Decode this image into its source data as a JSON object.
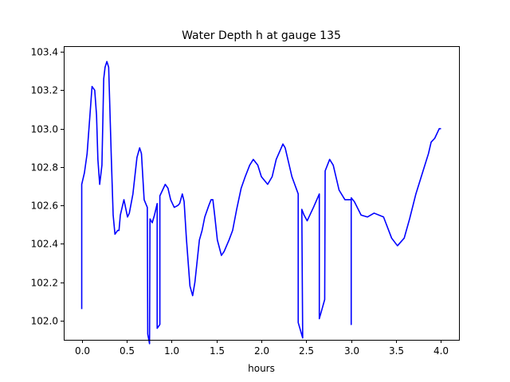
{
  "chart_data": {
    "type": "line",
    "title": "Water Depth h at gauge 135",
    "xlabel": "hours",
    "ylabel": "",
    "xlim": [
      -0.2,
      4.2
    ],
    "ylim": [
      101.9,
      103.43
    ],
    "grid": false,
    "xticks": [
      0.0,
      0.5,
      1.0,
      1.5,
      2.0,
      2.5,
      3.0,
      3.5,
      4.0
    ],
    "xtick_labels": [
      "0.0",
      "0.5",
      "1.0",
      "1.5",
      "2.0",
      "2.5",
      "3.0",
      "3.5",
      "4.0"
    ],
    "yticks": [
      102.0,
      102.2,
      102.4,
      102.6,
      102.8,
      103.0,
      103.2,
      103.4
    ],
    "ytick_labels": [
      "102.0",
      "102.2",
      "102.4",
      "102.6",
      "102.8",
      "103.0",
      "103.2",
      "103.4"
    ],
    "series": [
      {
        "name": "h",
        "color": "#0000ff",
        "points": [
          [
            0.0,
            102.06
          ],
          [
            0.0,
            102.71
          ],
          [
            0.03,
            102.77
          ],
          [
            0.06,
            102.87
          ],
          [
            0.09,
            103.06
          ],
          [
            0.115,
            103.22
          ],
          [
            0.145,
            103.2
          ],
          [
            0.165,
            103.07
          ],
          [
            0.18,
            102.84
          ],
          [
            0.2,
            102.71
          ],
          [
            0.225,
            102.81
          ],
          [
            0.245,
            103.26
          ],
          [
            0.26,
            103.32
          ],
          [
            0.28,
            103.35
          ],
          [
            0.3,
            103.32
          ],
          [
            0.33,
            102.84
          ],
          [
            0.35,
            102.55
          ],
          [
            0.37,
            102.45
          ],
          [
            0.4,
            102.47
          ],
          [
            0.415,
            102.47
          ],
          [
            0.43,
            102.55
          ],
          [
            0.47,
            102.63
          ],
          [
            0.51,
            102.54
          ],
          [
            0.53,
            102.56
          ],
          [
            0.57,
            102.66
          ],
          [
            0.615,
            102.85
          ],
          [
            0.645,
            102.9
          ],
          [
            0.665,
            102.87
          ],
          [
            0.695,
            102.63
          ],
          [
            0.73,
            102.59
          ],
          [
            0.735,
            101.93
          ],
          [
            0.755,
            101.88
          ],
          [
            0.76,
            102.53
          ],
          [
            0.785,
            102.51
          ],
          [
            0.81,
            102.55
          ],
          [
            0.84,
            102.61
          ],
          [
            0.84,
            101.96
          ],
          [
            0.87,
            101.98
          ],
          [
            0.87,
            102.65
          ],
          [
            0.93,
            102.71
          ],
          [
            0.96,
            102.69
          ],
          [
            0.99,
            102.63
          ],
          [
            1.03,
            102.59
          ],
          [
            1.07,
            102.6
          ],
          [
            1.09,
            102.61
          ],
          [
            1.12,
            102.66
          ],
          [
            1.14,
            102.62
          ],
          [
            1.165,
            102.43
          ],
          [
            1.205,
            102.18
          ],
          [
            1.235,
            102.13
          ],
          [
            1.26,
            102.2
          ],
          [
            1.31,
            102.42
          ],
          [
            1.34,
            102.47
          ],
          [
            1.37,
            102.54
          ],
          [
            1.415,
            102.6
          ],
          [
            1.44,
            102.63
          ],
          [
            1.46,
            102.63
          ],
          [
            1.48,
            102.55
          ],
          [
            1.51,
            102.42
          ],
          [
            1.555,
            102.34
          ],
          [
            1.585,
            102.36
          ],
          [
            1.64,
            102.42
          ],
          [
            1.68,
            102.47
          ],
          [
            1.725,
            102.58
          ],
          [
            1.775,
            102.69
          ],
          [
            1.82,
            102.75
          ],
          [
            1.87,
            102.81
          ],
          [
            1.91,
            102.84
          ],
          [
            1.96,
            102.81
          ],
          [
            2.0,
            102.75
          ],
          [
            2.07,
            102.71
          ],
          [
            2.12,
            102.75
          ],
          [
            2.165,
            102.84
          ],
          [
            2.24,
            102.92
          ],
          [
            2.265,
            102.9
          ],
          [
            2.34,
            102.75
          ],
          [
            2.41,
            102.66
          ],
          [
            2.41,
            101.99
          ],
          [
            2.46,
            101.91
          ],
          [
            2.45,
            102.58
          ],
          [
            2.475,
            102.55
          ],
          [
            2.51,
            102.52
          ],
          [
            2.58,
            102.59
          ],
          [
            2.645,
            102.66
          ],
          [
            2.645,
            102.01
          ],
          [
            2.705,
            102.11
          ],
          [
            2.71,
            102.78
          ],
          [
            2.76,
            102.84
          ],
          [
            2.8,
            102.81
          ],
          [
            2.865,
            102.68
          ],
          [
            2.93,
            102.63
          ],
          [
            3.0,
            102.63
          ],
          [
            3.0,
            101.98
          ],
          [
            3.0,
            102.64
          ],
          [
            3.035,
            102.62
          ],
          [
            3.11,
            102.55
          ],
          [
            3.18,
            102.54
          ],
          [
            3.255,
            102.56
          ],
          [
            3.36,
            102.54
          ],
          [
            3.45,
            102.43
          ],
          [
            3.515,
            102.39
          ],
          [
            3.59,
            102.43
          ],
          [
            3.65,
            102.53
          ],
          [
            3.72,
            102.66
          ],
          [
            3.78,
            102.75
          ],
          [
            3.82,
            102.81
          ],
          [
            3.86,
            102.87
          ],
          [
            3.89,
            102.93
          ],
          [
            3.93,
            102.95
          ],
          [
            3.98,
            103.0
          ],
          [
            4.0,
            103.0
          ]
        ]
      }
    ]
  }
}
